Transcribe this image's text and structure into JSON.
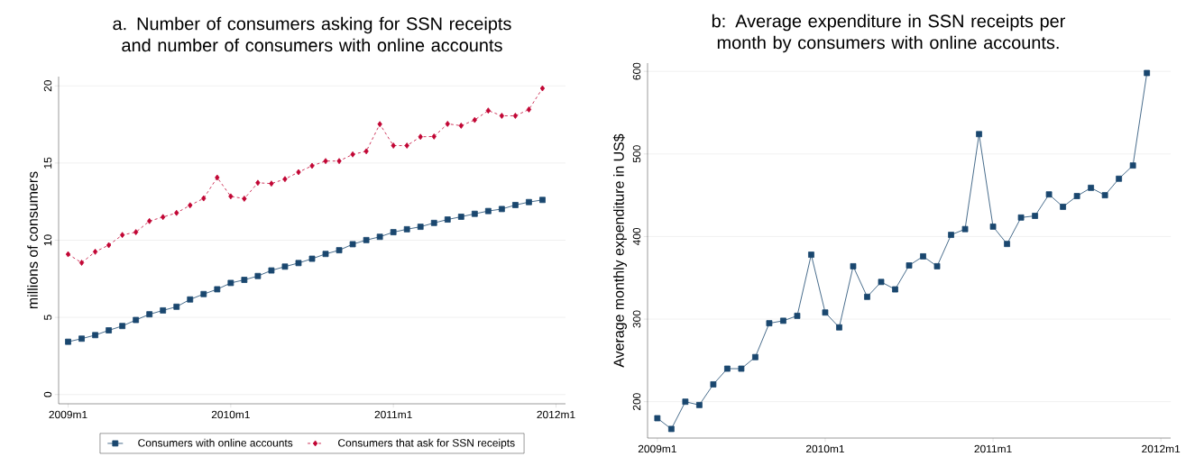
{
  "chart_data": [
    {
      "type": "line",
      "title": "a. Number of consumers asking for SSN receipts and number of consumers with online accounts",
      "ylabel": "millions of consumers",
      "categories": [
        "2009m1",
        null,
        null,
        null,
        null,
        null,
        null,
        null,
        null,
        null,
        null,
        null,
        "2010m1",
        null,
        null,
        null,
        null,
        null,
        null,
        null,
        null,
        null,
        null,
        null,
        "2011m1",
        null,
        null,
        null,
        null,
        null,
        null,
        null,
        null,
        null,
        null,
        null,
        "2012m1"
      ],
      "ylim": [
        -0.6,
        20.6
      ],
      "yticks": [
        0,
        5,
        10,
        15,
        20
      ],
      "grid": "y",
      "legend": "bottom",
      "series": [
        {
          "name": "Consumers with online accounts",
          "color": "#1a476f",
          "marker": "square",
          "line_style": "solid",
          "values": [
            3.42,
            3.62,
            3.85,
            4.16,
            4.44,
            4.83,
            5.2,
            5.45,
            5.69,
            6.16,
            6.51,
            6.82,
            7.23,
            7.43,
            7.68,
            8.04,
            8.29,
            8.52,
            8.8,
            9.11,
            9.35,
            9.74,
            10.01,
            10.22,
            10.52,
            10.71,
            10.87,
            11.12,
            11.34,
            11.52,
            11.71,
            11.89,
            12.02,
            12.28,
            12.47,
            12.61,
            null
          ]
        },
        {
          "name": "Consumers that ask for SSN receipts",
          "color": "#c10534",
          "marker": "diamond",
          "line_style": "dashed",
          "values": [
            9.09,
            8.54,
            9.25,
            9.68,
            10.34,
            10.52,
            11.24,
            11.5,
            11.77,
            12.26,
            12.71,
            14.06,
            12.84,
            12.69,
            13.72,
            13.67,
            13.96,
            14.41,
            14.82,
            15.13,
            15.13,
            15.56,
            15.76,
            17.52,
            16.13,
            16.13,
            16.7,
            16.72,
            17.54,
            17.42,
            17.79,
            18.4,
            18.06,
            18.06,
            18.47,
            19.84,
            null
          ]
        }
      ]
    },
    {
      "type": "line",
      "title": "b: Average expenditure in SSN receipts per month by consumers with online accounts.",
      "ylabel": "Average monthly expenditure in US$",
      "categories": [
        "2009m1",
        null,
        null,
        null,
        null,
        null,
        null,
        null,
        null,
        null,
        null,
        null,
        "2010m1",
        null,
        null,
        null,
        null,
        null,
        null,
        null,
        null,
        null,
        null,
        null,
        "2011m1",
        null,
        null,
        null,
        null,
        null,
        null,
        null,
        null,
        null,
        null,
        null,
        "2012m1"
      ],
      "ylim": [
        156,
        610
      ],
      "yticks": [
        200,
        300,
        400,
        500,
        600
      ],
      "grid": "y",
      "series": [
        {
          "color": "#1a476f",
          "marker": "square",
          "line_style": "solid",
          "values": [
            180,
            167,
            200,
            196,
            221,
            240,
            240,
            254,
            295,
            298,
            304,
            378,
            308,
            290,
            364,
            327,
            345,
            336,
            365,
            376,
            364,
            402,
            409,
            524,
            412,
            391,
            423,
            425,
            451,
            436,
            449,
            459,
            450,
            470,
            486,
            598,
            null
          ]
        }
      ]
    }
  ]
}
